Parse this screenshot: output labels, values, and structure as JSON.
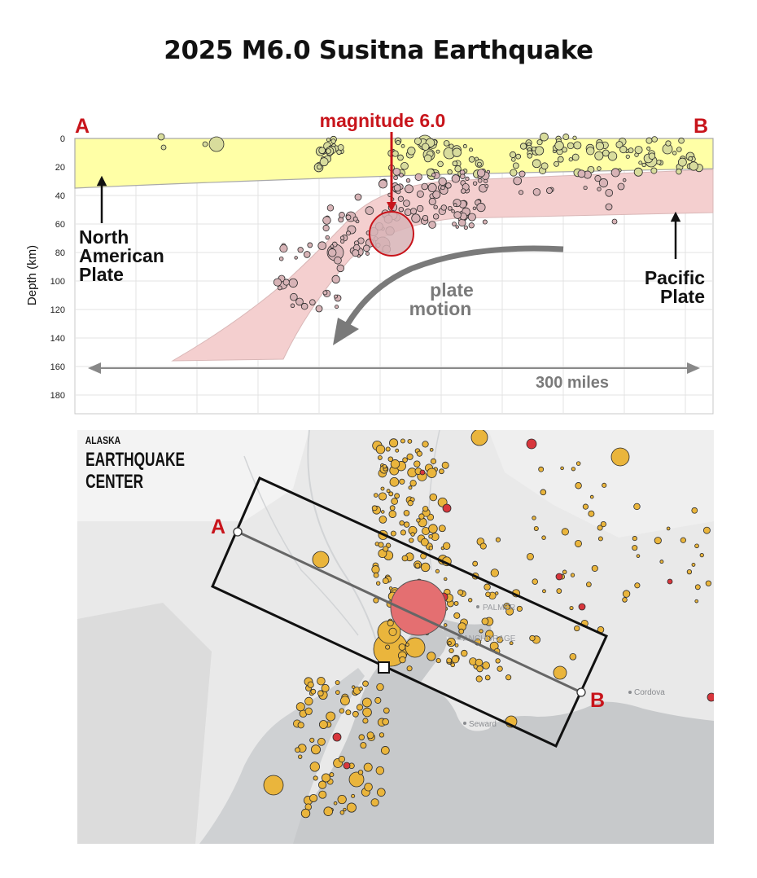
{
  "title": "2025 M6.0 Susitna Earthquake",
  "cross_section": {
    "end_label_a": "A",
    "end_label_b": "B",
    "y_axis_label": "Depth (km)",
    "y_ticks": [
      "0",
      "20",
      "40",
      "60",
      "80",
      "100",
      "120",
      "140",
      "160",
      "180"
    ],
    "mainshock_label": "magnitude 6.0",
    "north_american_plate_label": [
      "North",
      "American",
      "Plate"
    ],
    "pacific_plate_label": [
      "Pacific",
      "Plate"
    ],
    "plate_motion_label": [
      "plate",
      "motion"
    ],
    "distance_label": "300 miles",
    "colors": {
      "north_american_plate": "#ffffa6",
      "pacific_slab": "#f4cfcf",
      "quake_shallow": "#d8dc9c",
      "quake_deep": "#d7b3b6",
      "mainshock": "#c9474a",
      "label_red": "#c8141b",
      "arrow_gray": "#7a7a7a"
    }
  },
  "map": {
    "logo_lines": [
      "ALASKA",
      "EARTHQUAKE",
      "CENTER"
    ],
    "end_label_a": "A",
    "end_label_b": "B",
    "places": [
      "PALMER",
      "ANCHORAGE",
      "Cordova",
      "Seward"
    ],
    "colors": {
      "land": "#e9e9e9",
      "water": "#c7c9cb",
      "quake_yellow": "#eab53c",
      "quake_red": "#d7363c",
      "mainshock": "#e46f71"
    }
  }
}
